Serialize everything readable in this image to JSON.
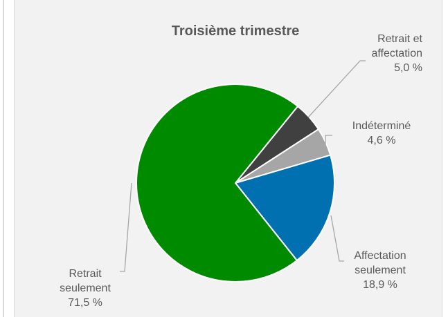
{
  "chart_data": {
    "type": "pie",
    "title": "Troisième trimestre",
    "categories": [
      "Retrait et affectation",
      "Indéterminé",
      "Affectation seulement",
      "Retrait seulement"
    ],
    "values": [
      5.0,
      4.6,
      18.9,
      71.5
    ],
    "value_labels": [
      "5,0 %",
      "4,6 %",
      "18,9 %",
      "71,5 %"
    ],
    "colors": [
      "#404040",
      "#a6a6a6",
      "#0070b0",
      "#008a00"
    ]
  }
}
